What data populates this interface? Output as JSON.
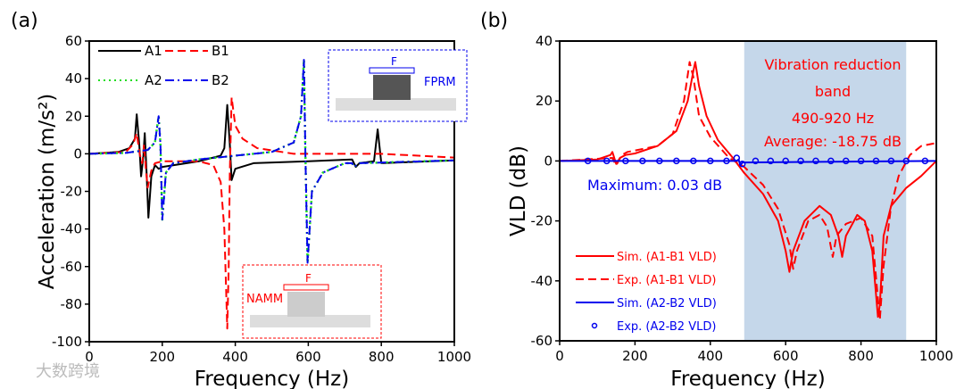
{
  "chart_data": [
    {
      "panel_label": "(a)",
      "type": "line",
      "xlabel": "Frequency (Hz)",
      "ylabel": "Acceleration (m/s²)",
      "xlim": [
        0,
        1000
      ],
      "ylim": [
        -100,
        60
      ],
      "xticks": [
        0,
        200,
        400,
        600,
        800,
        1000
      ],
      "yticks": [
        60,
        40,
        20,
        0,
        -20,
        -40,
        -60,
        -80,
        -100
      ],
      "legend_placement": "top-left",
      "series": [
        {
          "name": "A1",
          "color": "#000000",
          "style": "solid",
          "points": [
            [
              0,
              0
            ],
            [
              80,
              1
            ],
            [
              110,
              3
            ],
            [
              125,
              8
            ],
            [
              130,
              21
            ],
            [
              137,
              5
            ],
            [
              142,
              -12
            ],
            [
              148,
              -2
            ],
            [
              152,
              11
            ],
            [
              157,
              -10
            ],
            [
              162,
              -34
            ],
            [
              170,
              -12
            ],
            [
              180,
              -6
            ],
            [
              190,
              -8
            ],
            [
              200,
              -7
            ],
            [
              300,
              -4
            ],
            [
              360,
              -1
            ],
            [
              370,
              3
            ],
            [
              378,
              26
            ],
            [
              385,
              5
            ],
            [
              390,
              -14
            ],
            [
              400,
              -8
            ],
            [
              450,
              -5
            ],
            [
              600,
              -4
            ],
            [
              720,
              -3
            ],
            [
              730,
              -7
            ],
            [
              740,
              -5
            ],
            [
              780,
              -4
            ],
            [
              790,
              13
            ],
            [
              800,
              -5
            ],
            [
              1000,
              -3.5
            ]
          ]
        },
        {
          "name": "B1",
          "color": "#ff0000",
          "style": "dash",
          "points": [
            [
              0,
              0
            ],
            [
              100,
              1
            ],
            [
              120,
              5
            ],
            [
              130,
              11
            ],
            [
              138,
              0
            ],
            [
              145,
              -5
            ],
            [
              150,
              5
            ],
            [
              155,
              -8
            ],
            [
              160,
              -18
            ],
            [
              170,
              -9
            ],
            [
              180,
              -5
            ],
            [
              200,
              -4
            ],
            [
              300,
              -4
            ],
            [
              340,
              -6
            ],
            [
              360,
              -15
            ],
            [
              370,
              -40
            ],
            [
              378,
              -93
            ],
            [
              382,
              -60
            ],
            [
              385,
              -10
            ],
            [
              390,
              30
            ],
            [
              400,
              15
            ],
            [
              420,
              8
            ],
            [
              460,
              3
            ],
            [
              560,
              0
            ],
            [
              800,
              0
            ],
            [
              1000,
              -2
            ]
          ]
        },
        {
          "name": "A2",
          "color": "#22dd22",
          "style": "dot",
          "points": [
            [
              0,
              0
            ],
            [
              100,
              0.5
            ],
            [
              160,
              2
            ],
            [
              180,
              6
            ],
            [
              190,
              20
            ],
            [
              195,
              5
            ],
            [
              200,
              -35
            ],
            [
              210,
              -10
            ],
            [
              230,
              -5
            ],
            [
              300,
              -3
            ],
            [
              400,
              -1
            ],
            [
              500,
              1
            ],
            [
              560,
              6
            ],
            [
              580,
              20
            ],
            [
              588,
              50
            ],
            [
              592,
              0
            ],
            [
              598,
              -58
            ],
            [
              610,
              -20
            ],
            [
              640,
              -10
            ],
            [
              700,
              -5
            ],
            [
              720,
              -5
            ],
            [
              725,
              -7
            ],
            [
              740,
              -5
            ],
            [
              1000,
              -3.5
            ]
          ]
        },
        {
          "name": "B2",
          "color": "#0000ee",
          "style": "dashdot",
          "points": [
            [
              0,
              0
            ],
            [
              100,
              0.5
            ],
            [
              160,
              2
            ],
            [
              180,
              6
            ],
            [
              190,
              20
            ],
            [
              195,
              5
            ],
            [
              200,
              -35
            ],
            [
              210,
              -10
            ],
            [
              230,
              -5
            ],
            [
              300,
              -3
            ],
            [
              400,
              -1
            ],
            [
              500,
              1
            ],
            [
              560,
              6
            ],
            [
              580,
              20
            ],
            [
              588,
              50
            ],
            [
              592,
              0
            ],
            [
              598,
              -58
            ],
            [
              610,
              -20
            ],
            [
              640,
              -10
            ],
            [
              700,
              -5
            ],
            [
              720,
              -5
            ],
            [
              725,
              -7
            ],
            [
              740,
              -5
            ],
            [
              1000,
              -3.5
            ]
          ]
        }
      ],
      "insets": [
        {
          "label": "FPRM",
          "force": "F",
          "color": "#0000ee"
        },
        {
          "label": "NAMM",
          "force": "F",
          "color": "#ff0000"
        }
      ]
    },
    {
      "panel_label": "(b)",
      "type": "line",
      "xlabel": "Frequency (Hz)",
      "ylabel": "VLD (dB)",
      "xlim": [
        0,
        1000
      ],
      "ylim": [
        -60,
        40
      ],
      "xticks": [
        0,
        200,
        400,
        600,
        800,
        1000
      ],
      "yticks": [
        40,
        20,
        0,
        -20,
        -40,
        -60
      ],
      "shaded_band": [
        490,
        920
      ],
      "band_color": "#c5d7ea",
      "annotations": [
        "Vibration reduction",
        "band",
        "490-920 Hz",
        "Average: -18.75 dB",
        "Maximum: 0.03 dB"
      ],
      "legend_placement": "bottom-left",
      "series": [
        {
          "name": "Sim. (A1-B1 VLD)",
          "color": "#ff0000",
          "style": "solid",
          "points": [
            [
              0,
              0
            ],
            [
              100,
              0.5
            ],
            [
              135,
              2
            ],
            [
              140,
              3
            ],
            [
              145,
              1
            ],
            [
              150,
              -1
            ],
            [
              160,
              1
            ],
            [
              175,
              2
            ],
            [
              200,
              2.5
            ],
            [
              260,
              5
            ],
            [
              310,
              10
            ],
            [
              340,
              20
            ],
            [
              355,
              30
            ],
            [
              360,
              33
            ],
            [
              370,
              25
            ],
            [
              390,
              15
            ],
            [
              420,
              7
            ],
            [
              460,
              1
            ],
            [
              490,
              -4
            ],
            [
              540,
              -11
            ],
            [
              580,
              -20
            ],
            [
              600,
              -30
            ],
            [
              610,
              -37
            ],
            [
              620,
              -30
            ],
            [
              650,
              -20
            ],
            [
              690,
              -15
            ],
            [
              720,
              -18
            ],
            [
              740,
              -25
            ],
            [
              750,
              -32
            ],
            [
              760,
              -25
            ],
            [
              790,
              -18
            ],
            [
              810,
              -20
            ],
            [
              830,
              -30
            ],
            [
              845,
              -52
            ],
            [
              850,
              -48
            ],
            [
              860,
              -25
            ],
            [
              880,
              -15
            ],
            [
              920,
              -9
            ],
            [
              960,
              -5
            ],
            [
              1000,
              0
            ]
          ]
        },
        {
          "name": "Exp. (A1-B1 VLD)",
          "color": "#ff0000",
          "style": "dash",
          "points": [
            [
              0,
              0
            ],
            [
              140,
              1
            ],
            [
              150,
              -1.5
            ],
            [
              165,
              2
            ],
            [
              180,
              3
            ],
            [
              260,
              5
            ],
            [
              300,
              9
            ],
            [
              330,
              20
            ],
            [
              345,
              33
            ],
            [
              355,
              28
            ],
            [
              370,
              15
            ],
            [
              400,
              8
            ],
            [
              450,
              1
            ],
            [
              490,
              -2
            ],
            [
              540,
              -8
            ],
            [
              580,
              -16
            ],
            [
              610,
              -28
            ],
            [
              620,
              -36
            ],
            [
              630,
              -30
            ],
            [
              660,
              -20
            ],
            [
              690,
              -18
            ],
            [
              710,
              -22
            ],
            [
              725,
              -32
            ],
            [
              735,
              -25
            ],
            [
              760,
              -21
            ],
            [
              800,
              -19
            ],
            [
              830,
              -25
            ],
            [
              850,
              -53
            ],
            [
              860,
              -35
            ],
            [
              880,
              -15
            ],
            [
              900,
              -5
            ],
            [
              930,
              2
            ],
            [
              960,
              5
            ],
            [
              1000,
              6
            ]
          ]
        },
        {
          "name": "Sim. (A2-B2 VLD)",
          "color": "#0000ee",
          "style": "solid",
          "points": [
            [
              0,
              0
            ],
            [
              470,
              0
            ],
            [
              475,
              0.5
            ],
            [
              480,
              -1.5
            ],
            [
              485,
              -0.5
            ],
            [
              1000,
              0
            ]
          ]
        },
        {
          "name": "Exp. (A2-B2 VLD)",
          "color": "#0000ee",
          "style": "circle",
          "points": [
            [
              75,
              0
            ],
            [
              125,
              0
            ],
            [
              175,
              0
            ],
            [
              220,
              0
            ],
            [
              265,
              0
            ],
            [
              310,
              0
            ],
            [
              355,
              0
            ],
            [
              400,
              0
            ],
            [
              443,
              0
            ],
            [
              470,
              1
            ],
            [
              485,
              -1
            ],
            [
              520,
              0
            ],
            [
              560,
              0
            ],
            [
              600,
              0
            ],
            [
              640,
              0
            ],
            [
              680,
              0
            ],
            [
              720,
              0
            ],
            [
              760,
              0
            ],
            [
              800,
              0
            ],
            [
              840,
              0
            ],
            [
              880,
              0
            ],
            [
              920,
              0
            ],
            [
              970,
              0
            ]
          ]
        }
      ]
    }
  ],
  "watermark": "大数跨境"
}
